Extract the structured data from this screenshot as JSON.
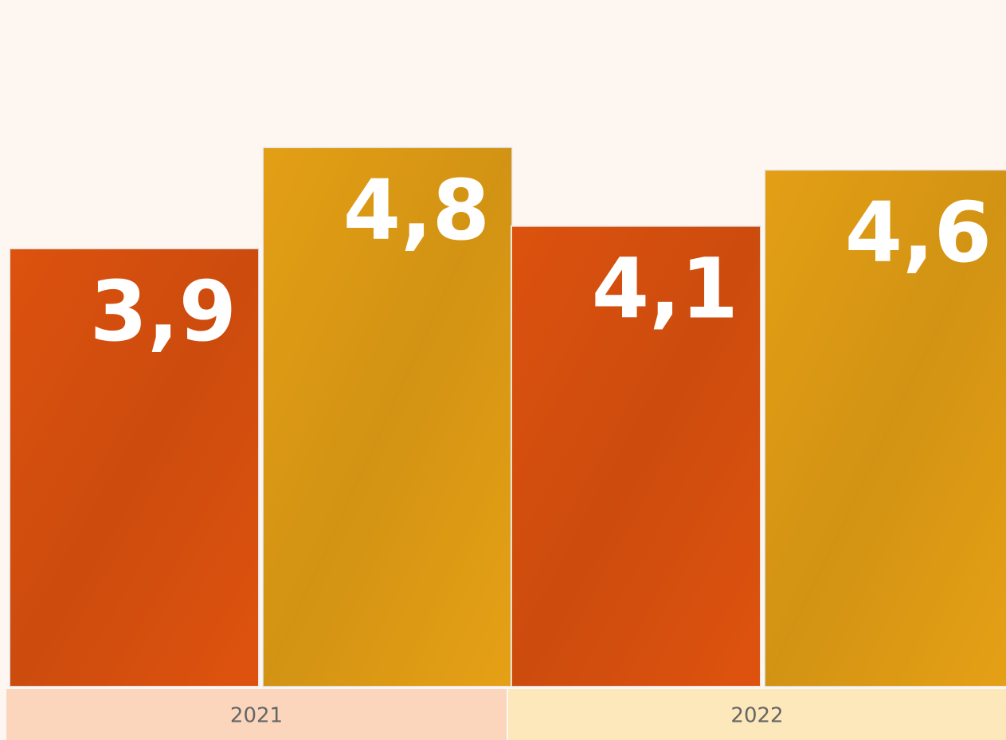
{
  "chart_data": {
    "type": "bar",
    "categories": [
      "2021",
      "2022"
    ],
    "series": [
      {
        "color": "#e8560f",
        "values": [
          3.9,
          4.1
        ],
        "value_labels": [
          "3,9",
          "4,1"
        ]
      },
      {
        "color": "#efa716",
        "values": [
          4.8,
          4.6
        ],
        "value_labels": [
          "4,8",
          "4,6"
        ]
      }
    ],
    "category_colors": [
      "#fbd6bd",
      "#fde8bb"
    ]
  }
}
